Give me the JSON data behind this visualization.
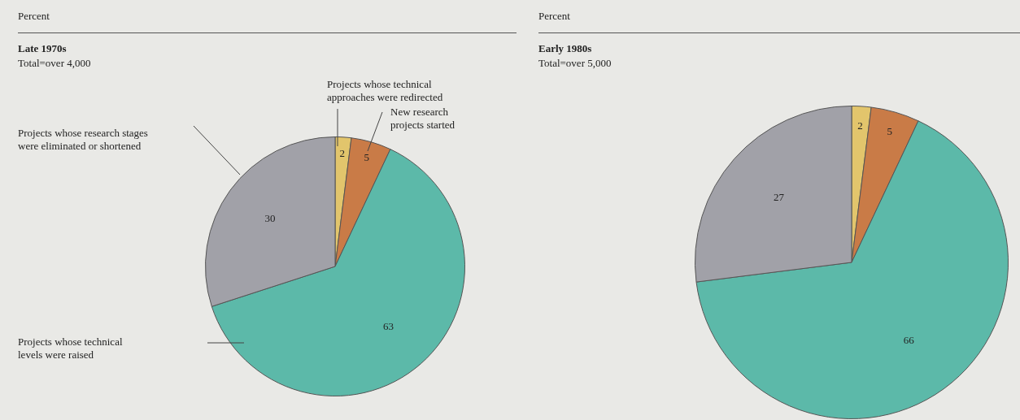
{
  "chart_data": [
    {
      "type": "pie",
      "title": "Late 1970s",
      "subtitle": "Total=over 4,000",
      "annotations": [
        "Percent"
      ],
      "categories": [
        "Projects whose technical approaches were redirected",
        "New research projects started",
        "Projects whose technical levels were raised",
        "Projects whose research stages were eliminated or shortened"
      ],
      "values": [
        2,
        5,
        63,
        30
      ],
      "colors": [
        "#e2c56c",
        "#c97b47",
        "#5cb9a9",
        "#a1a1a8"
      ],
      "data_labels": true
    },
    {
      "type": "pie",
      "title": "Early 1980s",
      "subtitle": "Total=over 5,000",
      "annotations": [
        "Percent"
      ],
      "categories": [
        null,
        null,
        null,
        null
      ],
      "values": [
        2,
        5,
        66,
        27
      ],
      "colors": [
        "#e2c56c",
        "#c97b47",
        "#5cb9a9",
        "#a1a1a8"
      ],
      "data_labels": true
    }
  ]
}
